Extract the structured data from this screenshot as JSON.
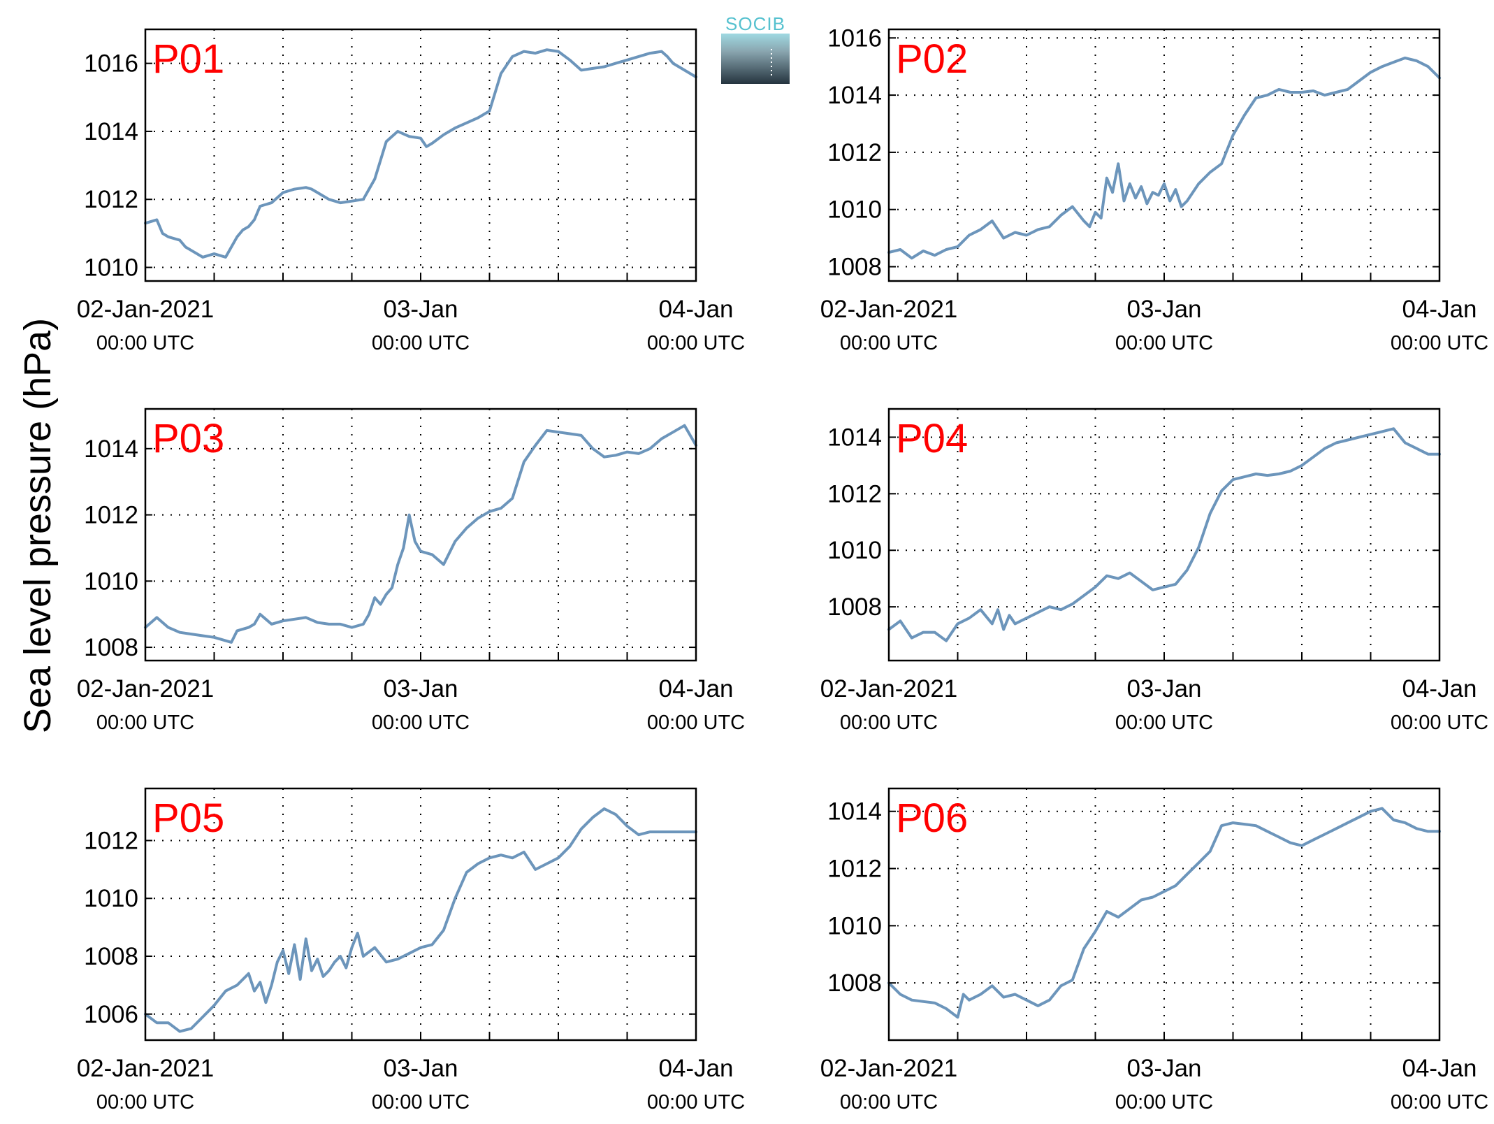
{
  "figure": {
    "ylabel": "Sea level pressure (hPa)",
    "logo_text": "SOCIB"
  },
  "colors": {
    "series": "#6c95bb",
    "panel_label": "#ff0000",
    "logo_accent": "#56c1cf"
  },
  "chart_data": [
    {
      "type": "line",
      "panel": "P01",
      "xlim": [
        0,
        48
      ],
      "ylim": [
        1009.6,
        1017.0
      ],
      "yticks": [
        1010,
        1012,
        1014,
        1016
      ],
      "ytick_labels": [
        "1010",
        "1012",
        "1014",
        "1016"
      ],
      "xtick_labels": [
        {
          "date": "02-Jan-2021",
          "time": "00:00 UTC"
        },
        {
          "date": "03-Jan",
          "time": "00:00 UTC"
        },
        {
          "date": "04-Jan",
          "time": "00:00 UTC"
        }
      ],
      "grid": true,
      "series": [
        {
          "x": [
            0,
            1,
            1.5,
            2,
            3,
            3.5,
            4,
            5,
            6,
            7,
            8,
            8.5,
            9,
            9.5,
            10,
            11,
            12,
            13,
            14,
            14.5,
            15,
            16,
            17,
            18,
            19,
            20,
            21,
            22,
            23,
            24,
            24.5,
            25,
            26,
            27,
            28,
            29,
            30,
            31,
            32,
            33,
            34,
            35,
            36,
            37,
            38,
            39,
            40,
            41,
            42,
            43,
            44,
            45,
            45.5,
            46,
            47,
            48
          ],
          "y": [
            1011.3,
            1011.4,
            1011.0,
            1010.9,
            1010.8,
            1010.6,
            1010.5,
            1010.3,
            1010.4,
            1010.3,
            1010.9,
            1011.1,
            1011.2,
            1011.4,
            1011.8,
            1011.9,
            1012.2,
            1012.3,
            1012.35,
            1012.3,
            1012.2,
            1012.0,
            1011.9,
            1011.95,
            1012.0,
            1012.6,
            1013.7,
            1014.0,
            1013.85,
            1013.8,
            1013.55,
            1013.65,
            1013.9,
            1014.1,
            1014.25,
            1014.4,
            1014.6,
            1015.7,
            1016.2,
            1016.35,
            1016.3,
            1016.4,
            1016.35,
            1016.1,
            1015.8,
            1015.85,
            1015.9,
            1016.0,
            1016.1,
            1016.2,
            1016.3,
            1016.35,
            1016.2,
            1016.0,
            1015.8,
            1015.6
          ]
        }
      ]
    },
    {
      "type": "line",
      "panel": "P02",
      "xlim": [
        0,
        48
      ],
      "ylim": [
        1007.5,
        1016.3
      ],
      "yticks": [
        1008,
        1010,
        1012,
        1014,
        1016
      ],
      "ytick_labels": [
        "1008",
        "1010",
        "1012",
        "1014",
        "1016"
      ],
      "xtick_labels": [
        {
          "date": "02-Jan-2021",
          "time": "00:00 UTC"
        },
        {
          "date": "03-Jan",
          "time": "00:00 UTC"
        },
        {
          "date": "04-Jan",
          "time": "00:00 UTC"
        }
      ],
      "grid": true,
      "series": [
        {
          "x": [
            0,
            1,
            2,
            3,
            4,
            5,
            6,
            7,
            8,
            9,
            10,
            11,
            12,
            13,
            14,
            15,
            16,
            17,
            17.5,
            18,
            18.5,
            19,
            19.5,
            20,
            20.5,
            21,
            21.5,
            22,
            22.5,
            23,
            23.5,
            24,
            24.5,
            25,
            25.5,
            26,
            27,
            28,
            29,
            30,
            31,
            32,
            33,
            34,
            35,
            36,
            37,
            38,
            39,
            40,
            41,
            42,
            43,
            44,
            45,
            46,
            47,
            48
          ],
          "y": [
            1008.5,
            1008.6,
            1008.3,
            1008.55,
            1008.4,
            1008.6,
            1008.7,
            1009.1,
            1009.3,
            1009.6,
            1009.0,
            1009.2,
            1009.1,
            1009.3,
            1009.4,
            1009.8,
            1010.1,
            1009.6,
            1009.4,
            1009.9,
            1009.7,
            1011.1,
            1010.6,
            1011.6,
            1010.3,
            1010.9,
            1010.4,
            1010.8,
            1010.2,
            1010.6,
            1010.5,
            1010.9,
            1010.3,
            1010.7,
            1010.1,
            1010.3,
            1010.9,
            1011.3,
            1011.6,
            1012.6,
            1013.3,
            1013.9,
            1014.0,
            1014.2,
            1014.1,
            1014.1,
            1014.15,
            1014.0,
            1014.1,
            1014.2,
            1014.5,
            1014.8,
            1015.0,
            1015.15,
            1015.3,
            1015.2,
            1015.0,
            1014.6
          ]
        }
      ]
    },
    {
      "type": "line",
      "panel": "P03",
      "xlim": [
        0,
        48
      ],
      "ylim": [
        1007.6,
        1015.2
      ],
      "yticks": [
        1008,
        1010,
        1012,
        1014
      ],
      "ytick_labels": [
        "1008",
        "1010",
        "1012",
        "1014"
      ],
      "xtick_labels": [
        {
          "date": "02-Jan-2021",
          "time": "00:00 UTC"
        },
        {
          "date": "03-Jan",
          "time": "00:00 UTC"
        },
        {
          "date": "04-Jan",
          "time": "00:00 UTC"
        }
      ],
      "grid": true,
      "series": [
        {
          "x": [
            0,
            1,
            2,
            3,
            4,
            5,
            6,
            7,
            7.5,
            8,
            9,
            9.5,
            10,
            11,
            12,
            13,
            14,
            15,
            16,
            17,
            18,
            19,
            19.5,
            20,
            20.5,
            21,
            21.5,
            22,
            22.5,
            23,
            23.5,
            24,
            25,
            26,
            27,
            28,
            29,
            30,
            31,
            32,
            33,
            34,
            35,
            36,
            37,
            38,
            39,
            40,
            41,
            42,
            43,
            44,
            45,
            46,
            47,
            48
          ],
          "y": [
            1008.6,
            1008.9,
            1008.6,
            1008.45,
            1008.4,
            1008.35,
            1008.3,
            1008.2,
            1008.15,
            1008.5,
            1008.6,
            1008.7,
            1009.0,
            1008.7,
            1008.8,
            1008.85,
            1008.9,
            1008.75,
            1008.7,
            1008.7,
            1008.6,
            1008.7,
            1009.0,
            1009.5,
            1009.3,
            1009.6,
            1009.8,
            1010.5,
            1011.0,
            1012.0,
            1011.2,
            1010.9,
            1010.8,
            1010.5,
            1011.2,
            1011.6,
            1011.9,
            1012.1,
            1012.2,
            1012.5,
            1013.6,
            1014.1,
            1014.55,
            1014.5,
            1014.45,
            1014.4,
            1014.0,
            1013.75,
            1013.8,
            1013.9,
            1013.85,
            1014.0,
            1014.3,
            1014.5,
            1014.7,
            1014.1
          ]
        }
      ]
    },
    {
      "type": "line",
      "panel": "P04",
      "xlim": [
        0,
        48
      ],
      "ylim": [
        1006.1,
        1015.0
      ],
      "yticks": [
        1008,
        1010,
        1012,
        1014
      ],
      "ytick_labels": [
        "1008",
        "1010",
        "1012",
        "1014"
      ],
      "xtick_labels": [
        {
          "date": "02-Jan-2021",
          "time": "00:00 UTC"
        },
        {
          "date": "03-Jan",
          "time": "00:00 UTC"
        },
        {
          "date": "04-Jan",
          "time": "00:00 UTC"
        }
      ],
      "grid": true,
      "series": [
        {
          "x": [
            0,
            1,
            2,
            3,
            4,
            5,
            6,
            7,
            8,
            9,
            9.5,
            10,
            10.5,
            11,
            12,
            13,
            14,
            15,
            16,
            17,
            18,
            19,
            20,
            21,
            22,
            23,
            24,
            25,
            26,
            27,
            28,
            29,
            30,
            31,
            32,
            33,
            34,
            35,
            36,
            37,
            38,
            39,
            40,
            41,
            42,
            43,
            44,
            45,
            46,
            47,
            48
          ],
          "y": [
            1007.2,
            1007.5,
            1006.9,
            1007.1,
            1007.1,
            1006.8,
            1007.4,
            1007.6,
            1007.9,
            1007.4,
            1007.9,
            1007.2,
            1007.7,
            1007.4,
            1007.6,
            1007.8,
            1008.0,
            1007.9,
            1008.1,
            1008.4,
            1008.7,
            1009.1,
            1009.0,
            1009.2,
            1008.9,
            1008.6,
            1008.7,
            1008.8,
            1009.3,
            1010.1,
            1011.3,
            1012.1,
            1012.5,
            1012.6,
            1012.7,
            1012.65,
            1012.7,
            1012.8,
            1013.0,
            1013.3,
            1013.6,
            1013.8,
            1013.9,
            1014.0,
            1014.1,
            1014.2,
            1014.3,
            1013.8,
            1013.6,
            1013.4,
            1013.4
          ]
        }
      ]
    },
    {
      "type": "line",
      "panel": "P05",
      "xlim": [
        0,
        48
      ],
      "ylim": [
        1005.1,
        1013.8
      ],
      "yticks": [
        1006,
        1008,
        1010,
        1012
      ],
      "ytick_labels": [
        "1006",
        "1008",
        "1010",
        "1012"
      ],
      "xtick_labels": [
        {
          "date": "02-Jan-2021",
          "time": "00:00 UTC"
        },
        {
          "date": "03-Jan",
          "time": "00:00 UTC"
        },
        {
          "date": "04-Jan",
          "time": "00:00 UTC"
        }
      ],
      "grid": true,
      "series": [
        {
          "x": [
            0,
            1,
            2,
            3,
            4,
            5,
            6,
            7,
            8,
            9,
            9.5,
            10,
            10.5,
            11,
            11.5,
            12,
            12.5,
            13,
            13.5,
            14,
            14.5,
            15,
            15.5,
            16,
            16.5,
            17,
            17.5,
            18,
            18.5,
            19,
            20,
            21,
            22,
            23,
            24,
            25,
            26,
            27,
            28,
            29,
            30,
            31,
            32,
            33,
            34,
            35,
            36,
            37,
            38,
            39,
            40,
            41,
            42,
            43,
            44,
            45,
            46,
            47,
            48
          ],
          "y": [
            1006.0,
            1005.7,
            1005.7,
            1005.4,
            1005.5,
            1005.9,
            1006.3,
            1006.8,
            1007.0,
            1007.4,
            1006.8,
            1007.1,
            1006.4,
            1007.0,
            1007.8,
            1008.2,
            1007.4,
            1008.4,
            1007.2,
            1008.6,
            1007.5,
            1007.9,
            1007.3,
            1007.5,
            1007.8,
            1008.0,
            1007.6,
            1008.3,
            1008.8,
            1008.0,
            1008.3,
            1007.8,
            1007.9,
            1008.1,
            1008.3,
            1008.4,
            1008.9,
            1010.0,
            1010.9,
            1011.2,
            1011.4,
            1011.5,
            1011.4,
            1011.6,
            1011.0,
            1011.2,
            1011.4,
            1011.8,
            1012.4,
            1012.8,
            1013.1,
            1012.9,
            1012.5,
            1012.2,
            1012.3,
            1012.3,
            1012.3,
            1012.3,
            1012.3
          ]
        }
      ]
    },
    {
      "type": "line",
      "panel": "P06",
      "xlim": [
        0,
        48
      ],
      "ylim": [
        1006.0,
        1014.8
      ],
      "yticks": [
        1008,
        1010,
        1012,
        1014
      ],
      "ytick_labels": [
        "1008",
        "1010",
        "1012",
        "1014"
      ],
      "xtick_labels": [
        {
          "date": "02-Jan-2021",
          "time": "00:00 UTC"
        },
        {
          "date": "03-Jan",
          "time": "00:00 UTC"
        },
        {
          "date": "04-Jan",
          "time": "00:00 UTC"
        }
      ],
      "grid": true,
      "series": [
        {
          "x": [
            0,
            1,
            2,
            3,
            4,
            5,
            6,
            6.5,
            7,
            8,
            9,
            10,
            11,
            12,
            13,
            14,
            15,
            16,
            17,
            18,
            19,
            20,
            21,
            22,
            23,
            24,
            25,
            26,
            27,
            28,
            29,
            30,
            31,
            32,
            33,
            34,
            35,
            36,
            37,
            38,
            39,
            40,
            41,
            42,
            43,
            44,
            45,
            46,
            47,
            48
          ],
          "y": [
            1008.0,
            1007.6,
            1007.4,
            1007.35,
            1007.3,
            1007.1,
            1006.8,
            1007.6,
            1007.4,
            1007.6,
            1007.9,
            1007.5,
            1007.6,
            1007.4,
            1007.2,
            1007.4,
            1007.9,
            1008.1,
            1009.2,
            1009.8,
            1010.5,
            1010.3,
            1010.6,
            1010.9,
            1011.0,
            1011.2,
            1011.4,
            1011.8,
            1012.2,
            1012.6,
            1013.5,
            1013.6,
            1013.55,
            1013.5,
            1013.3,
            1013.1,
            1012.9,
            1012.8,
            1013.0,
            1013.2,
            1013.4,
            1013.6,
            1013.8,
            1014.0,
            1014.1,
            1013.7,
            1013.6,
            1013.4,
            1013.3,
            1013.3
          ]
        }
      ]
    }
  ]
}
